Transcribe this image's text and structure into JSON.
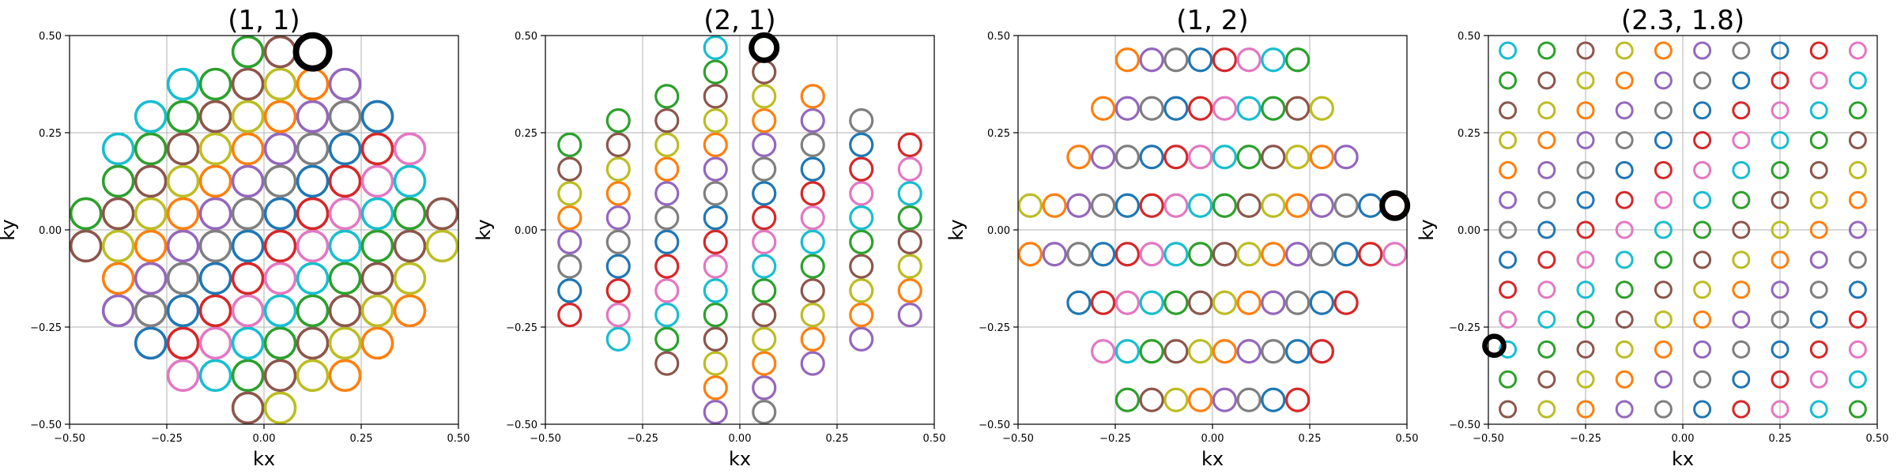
{
  "palette": [
    "#1f77b4",
    "#ff7f0e",
    "#2ca02c",
    "#d62728",
    "#9467bd",
    "#8c564b",
    "#e377c2",
    "#7f7f7f",
    "#bcbd22",
    "#17becf"
  ],
  "highlight_color": "#000000",
  "chart_data": [
    {
      "type": "scatter",
      "title": "(1, 1)",
      "xlabel": "kx",
      "ylabel": "ky",
      "xlim": [
        -0.5,
        0.5
      ],
      "ylim": [
        -0.5,
        0.5
      ],
      "xticks": [
        -0.5,
        -0.25,
        0.0,
        0.25,
        0.5
      ],
      "yticks": [
        -0.5,
        -0.25,
        0.0,
        0.25,
        0.5
      ],
      "xtick_labels": [
        "−0.50",
        "−0.25",
        "0.00",
        "0.25",
        "0.50"
      ],
      "ytick_labels": [
        "−0.50",
        "−0.25",
        "0.00",
        "0.25",
        "0.50"
      ],
      "grid": true,
      "marker": "open-circle",
      "marker_size": "large",
      "x_step": 0.0833,
      "y_step": 0.0833,
      "x_min": -0.458,
      "y_min": -0.458,
      "nx": 12,
      "ny": 12,
      "mask": "circle",
      "mask_radius": 0.47,
      "highlight": [
        0.125,
        0.458
      ]
    },
    {
      "type": "scatter",
      "title": "(2, 1)",
      "xlabel": "kx",
      "ylabel": "ky",
      "xlim": [
        -0.5,
        0.5
      ],
      "ylim": [
        -0.5,
        0.5
      ],
      "xticks": [
        -0.5,
        -0.25,
        0.0,
        0.25,
        0.5
      ],
      "yticks": [
        -0.5,
        -0.25,
        0.0,
        0.25,
        0.5
      ],
      "xtick_labels": [
        "−0.50",
        "−0.25",
        "0.00",
        "0.25",
        "0.50"
      ],
      "ytick_labels": [
        "−0.50",
        "−0.25",
        "0.00",
        "0.25",
        "0.50"
      ],
      "grid": true,
      "marker": "open-circle",
      "marker_size": "medium",
      "x_step": 0.125,
      "y_step": 0.0625,
      "x_min": -0.4375,
      "y_min": -0.46875,
      "nx": 8,
      "ny": 16,
      "mask": "diamond-columns",
      "highlight": [
        0.0625,
        0.46875
      ]
    },
    {
      "type": "scatter",
      "title": "(1, 2)",
      "xlabel": "kx",
      "ylabel": "ky",
      "xlim": [
        -0.5,
        0.5
      ],
      "ylim": [
        -0.5,
        0.5
      ],
      "xticks": [
        -0.5,
        -0.25,
        0.0,
        0.25,
        0.5
      ],
      "yticks": [
        -0.5,
        -0.25,
        0.0,
        0.25,
        0.5
      ],
      "xtick_labels": [
        "−0.50",
        "−0.25",
        "0.00",
        "0.25",
        "0.50"
      ],
      "ytick_labels": [
        "−0.50",
        "−0.25",
        "0.00",
        "0.25",
        "0.50"
      ],
      "grid": true,
      "marker": "open-circle",
      "marker_size": "medium",
      "x_step": 0.0625,
      "y_step": 0.125,
      "x_min": -0.46875,
      "y_min": -0.4375,
      "nx": 16,
      "ny": 8,
      "mask": "diamond-rows",
      "highlight": [
        0.46875,
        0.0625
      ]
    },
    {
      "type": "scatter",
      "title": "(2.3, 1.8)",
      "xlabel": "kx",
      "ylabel": "ky",
      "xlim": [
        -0.5,
        0.5
      ],
      "ylim": [
        -0.5,
        0.5
      ],
      "xticks": [
        -0.5,
        -0.25,
        0.0,
        0.25,
        0.5
      ],
      "yticks": [
        -0.5,
        -0.25,
        0.0,
        0.25,
        0.5
      ],
      "xtick_labels": [
        "−0.50",
        "−0.25",
        "0.00",
        "0.25",
        "0.50"
      ],
      "ytick_labels": [
        "−0.50",
        "−0.25",
        "0.00",
        "0.25",
        "0.50"
      ],
      "grid": true,
      "marker": "open-circle",
      "marker_size": "small",
      "x_step": 0.1,
      "y_step": 0.0769,
      "x_min": -0.45,
      "y_min": -0.4615,
      "nx": 10,
      "ny": 13,
      "mask": "none",
      "highlight": [
        -0.4848,
        -0.2982
      ]
    }
  ]
}
